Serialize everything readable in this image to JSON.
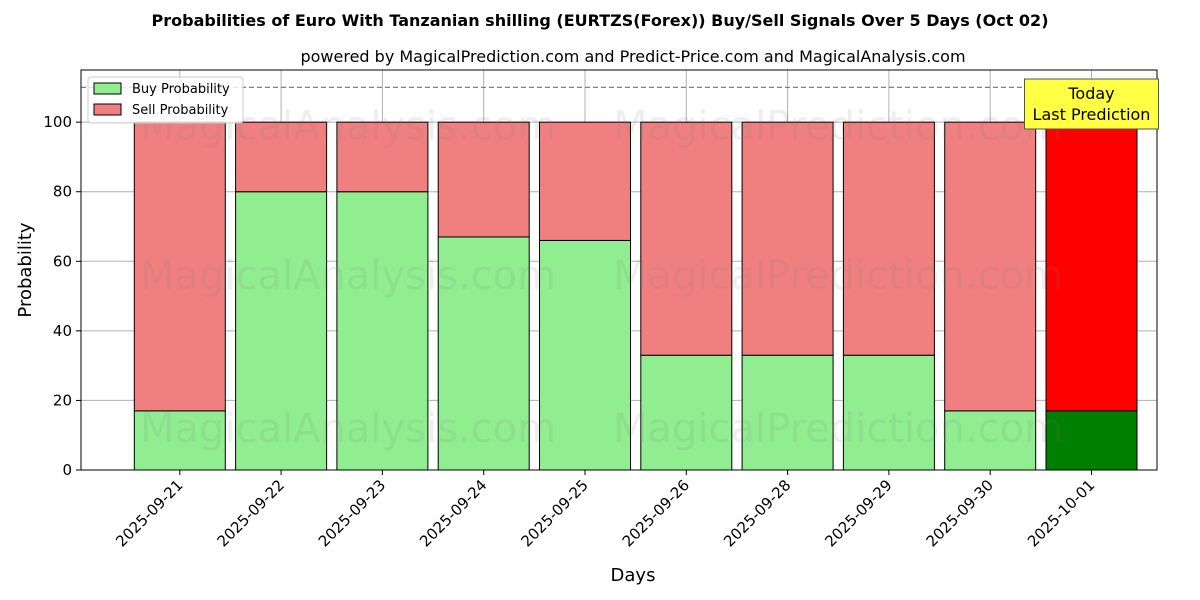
{
  "chart_data": {
    "type": "bar",
    "stacked": true,
    "title": "Probabilities of Euro With Tanzanian shilling (EURTZS(Forex)) Buy/Sell Signals Over 5 Days (Oct 02)",
    "subtitle": "powered by MagicalPrediction.com and Predict-Price.com and MagicalAnalysis.com",
    "xlabel": "Days",
    "ylabel": "Probability",
    "ylim": [
      0,
      115
    ],
    "yticks": [
      0,
      20,
      40,
      60,
      80,
      100
    ],
    "grid": true,
    "legend_position": "top-left",
    "reference_line": 110,
    "categories": [
      "2025-09-21",
      "2025-09-22",
      "2025-09-23",
      "2025-09-24",
      "2025-09-25",
      "2025-09-26",
      "2025-09-28",
      "2025-09-29",
      "2025-09-30",
      "2025-10-01"
    ],
    "series": [
      {
        "name": "Buy Probability",
        "color": "#90ee90",
        "values": [
          17,
          80,
          80,
          67,
          66,
          33,
          33,
          33,
          17,
          17
        ]
      },
      {
        "name": "Sell Probability",
        "color": "#f08080",
        "values": [
          83,
          20,
          20,
          33,
          34,
          67,
          67,
          67,
          83,
          83
        ]
      }
    ],
    "highlight": {
      "index": 9,
      "buy_color": "#008000",
      "sell_color": "#ff0000"
    },
    "annotation": {
      "lines": [
        "Today",
        "Last Prediction"
      ],
      "background": "#ffff44"
    },
    "watermarks": [
      "MagicalAnalysis.com",
      "MagicalPrediction.com"
    ]
  }
}
